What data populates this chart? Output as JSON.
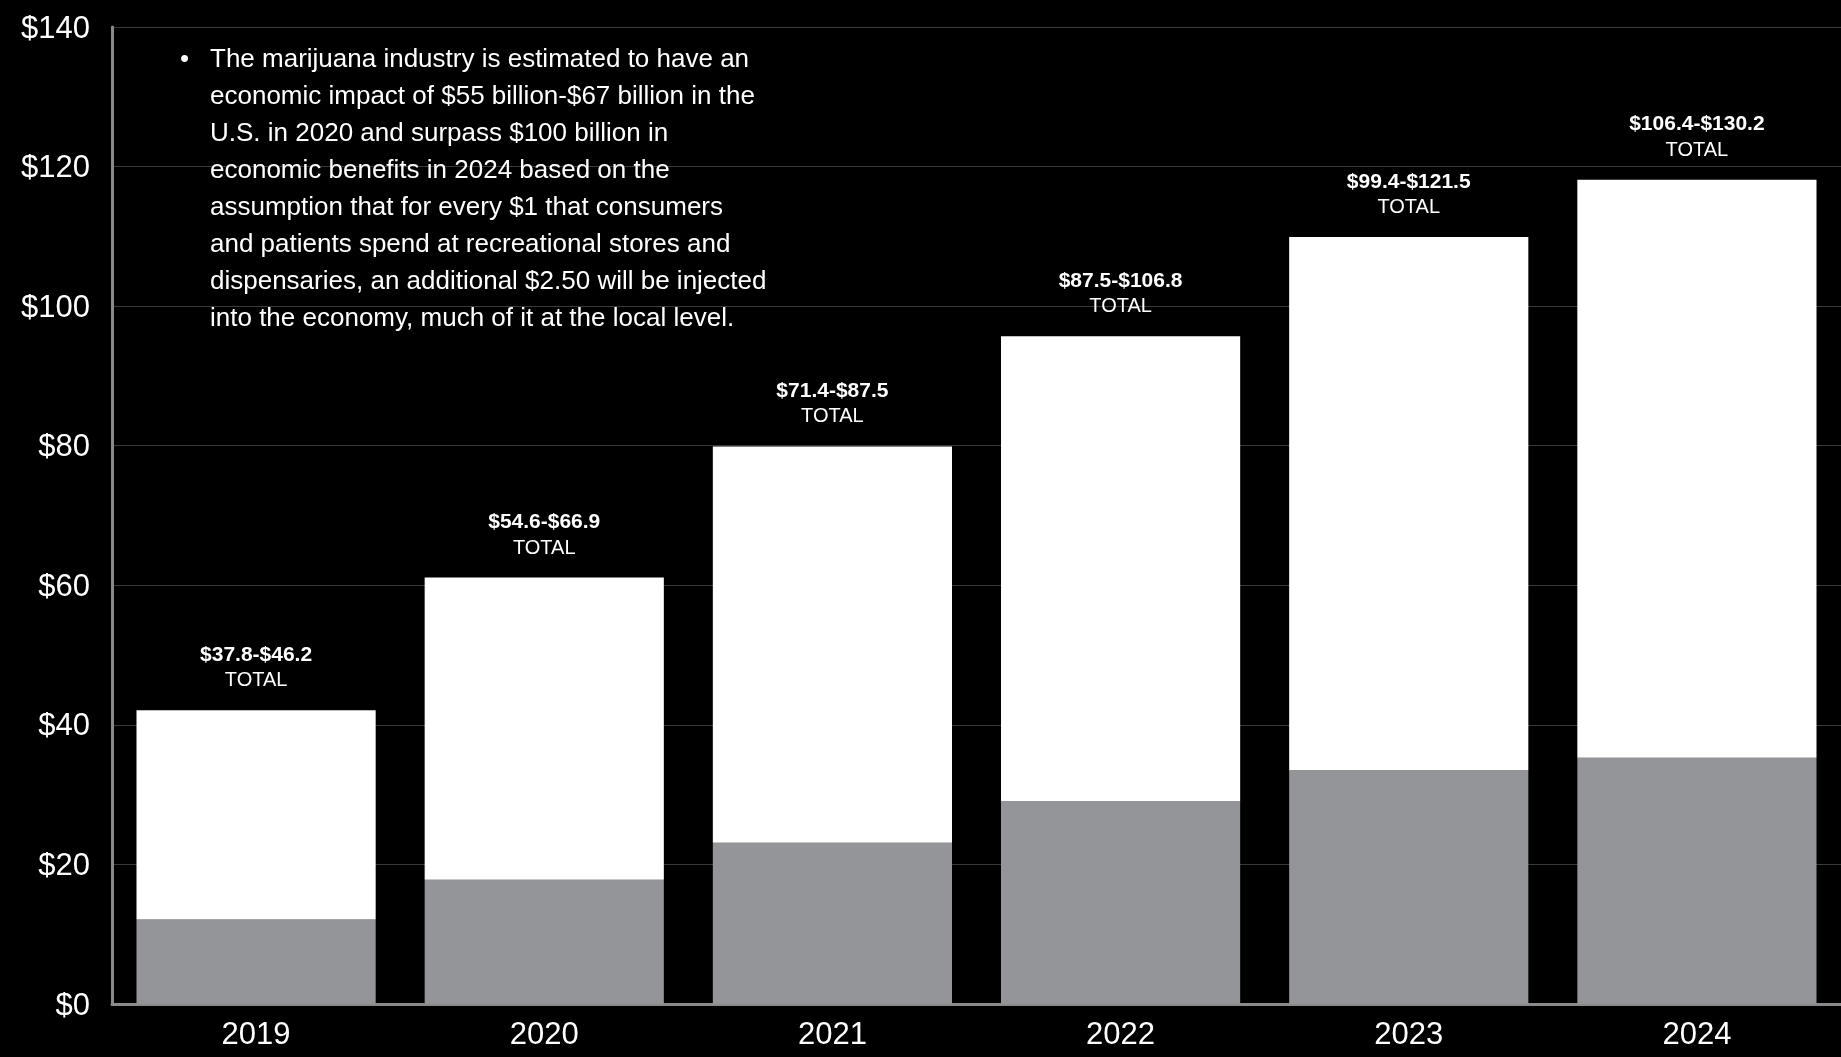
{
  "chart_data": {
    "type": "bar",
    "stacked": true,
    "categories": [
      "2019",
      "2020",
      "2021",
      "2022",
      "2023",
      "2024"
    ],
    "series": [
      {
        "color": "#939598",
        "values": [
          12.1,
          17.8,
          23.1,
          29.1,
          33.5,
          35.3
        ]
      },
      {
        "color": "#ffffff",
        "values": [
          30.0,
          43.3,
          56.8,
          66.6,
          76.4,
          82.8
        ]
      }
    ],
    "totals": [
      "$37.8-$46.2\nTOTAL",
      "$54.6-$66.9\nTOTAL",
      "$71.4-$87.5\nTOTAL",
      "$87.5-$106.8\nTOTAL",
      "$99.4-$121.5\nTOTAL",
      "$106.4-$130.2\nTOTAL"
    ],
    "ylim": [
      0,
      140
    ],
    "yticks": [
      {
        "value": 0,
        "label": "$0"
      },
      {
        "value": 20,
        "label": "$20"
      },
      {
        "value": 40,
        "label": "$40"
      },
      {
        "value": 60,
        "label": "$60"
      },
      {
        "value": 80,
        "label": "$80"
      },
      {
        "value": 100,
        "label": "$100"
      },
      {
        "value": 120,
        "label": "$120"
      },
      {
        "value": 140,
        "label": "$140"
      }
    ],
    "grid": "y",
    "annotations": [
      "•\tThe marijuana industry is estimated to have an economic impact of $55 billion-$67 billion in the U.S. in 2020 and surpass $100 billion in economic benefits in 2024 based on the assumption that for every $1 that consumers and patients spend at recreational stores and dispensaries, an additional $2.50 will be injected into the economy, much of it at the local level."
    ]
  }
}
